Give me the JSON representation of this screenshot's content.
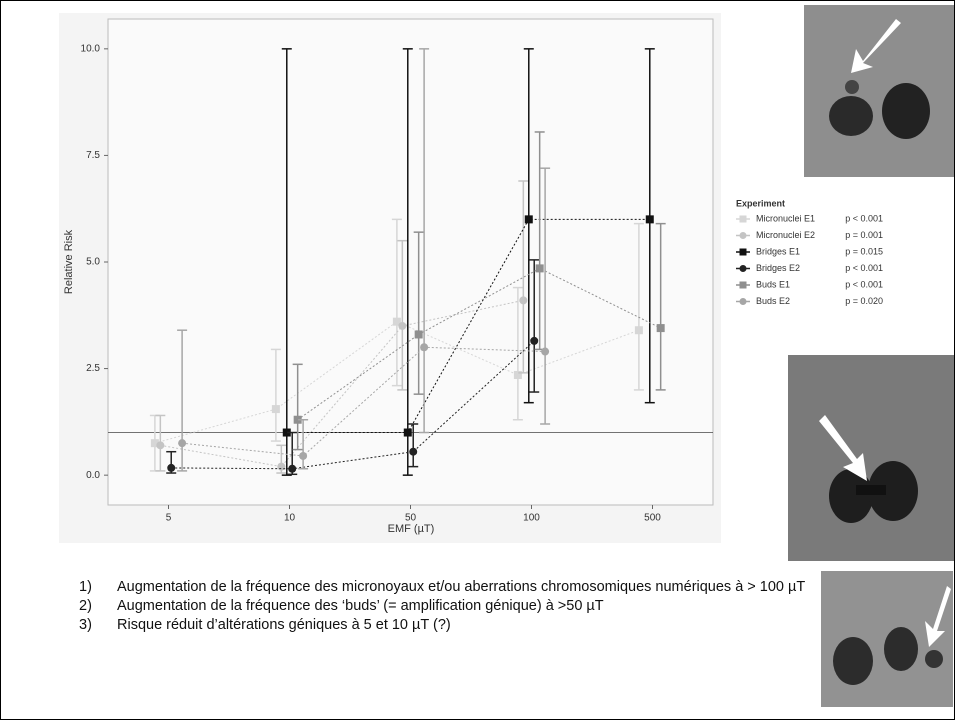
{
  "chart_data": {
    "type": "errorbar",
    "x_label": "EMF (µT)",
    "y_label": "Relative Risk",
    "categories": [
      "5",
      "10",
      "50",
      "100",
      "500"
    ],
    "ylim": [
      -0.7,
      10.7
    ],
    "yticks": [
      {
        "value": 0,
        "label": "0.0"
      },
      {
        "value": 2.5,
        "label": "2.5"
      },
      {
        "value": 5,
        "label": "5.0"
      },
      {
        "value": 7.5,
        "label": "7.5"
      },
      {
        "value": 10,
        "label": "10.0"
      }
    ],
    "reference_line": 1,
    "legend_title": "Experiment",
    "series": [
      {
        "name": "Micronuclei E1",
        "p_label": "p < 0.001",
        "color": "#d6d6d6",
        "marker": "square",
        "values": [
          0.75,
          1.55,
          3.6,
          2.35,
          3.4
        ],
        "low": [
          0.1,
          0.8,
          2.1,
          1.3,
          2.0
        ],
        "high": [
          1.4,
          2.95,
          6.0,
          4.4,
          5.9
        ]
      },
      {
        "name": "Micronuclei E2",
        "p_label": "p = 0.001",
        "color": "#c4c4c4",
        "marker": "circle",
        "values": [
          0.7,
          0.2,
          3.5,
          4.1,
          null
        ],
        "low": [
          0.1,
          0.05,
          2.0,
          2.4,
          null
        ],
        "high": [
          1.4,
          0.7,
          5.5,
          6.9,
          null
        ]
      },
      {
        "name": "Bridges E1",
        "p_label": "p = 0.015",
        "color": "#111111",
        "marker": "square",
        "values": [
          null,
          1.0,
          1.0,
          6.0,
          6.0
        ],
        "low": [
          null,
          0.0,
          0.0,
          1.7,
          1.7
        ],
        "high": [
          null,
          10.0,
          10.0,
          10.0,
          10.0
        ]
      },
      {
        "name": "Bridges E2",
        "p_label": "p < 0.001",
        "color": "#222222",
        "marker": "circle",
        "values": [
          0.17,
          0.15,
          0.55,
          3.15,
          null
        ],
        "low": [
          0.05,
          0.02,
          0.2,
          1.95,
          null
        ],
        "high": [
          0.55,
          1.0,
          1.2,
          5.05,
          null
        ]
      },
      {
        "name": "Buds E1",
        "p_label": "p < 0.001",
        "color": "#8f8f8f",
        "marker": "square",
        "values": [
          null,
          1.3,
          3.3,
          4.85,
          3.45
        ],
        "low": [
          null,
          0.6,
          1.9,
          2.95,
          2.0
        ],
        "high": [
          null,
          2.6,
          5.7,
          8.05,
          5.9
        ]
      },
      {
        "name": "Buds E2",
        "p_label": "p = 0.020",
        "color": "#a6a6a6",
        "marker": "circle",
        "values": [
          0.75,
          0.45,
          3.0,
          2.9,
          null
        ],
        "low": [
          0.1,
          0.15,
          1.0,
          1.2,
          null
        ],
        "high": [
          3.4,
          1.3,
          10.0,
          7.2,
          null
        ]
      }
    ]
  },
  "notes": [
    {
      "number": "1)",
      "text": "Augmentation de la fréquence des micronoyaux et/ou aberrations chromosomiques numériques à > 100 µT"
    },
    {
      "number": "2)",
      "text": "Augmentation de la fréquence des ‘buds’ (= amplification génique) à >50 µT"
    },
    {
      "number": "3)",
      "text": "Risque réduit d’altérations géniques à 5 et 10 µT (?)"
    }
  ]
}
